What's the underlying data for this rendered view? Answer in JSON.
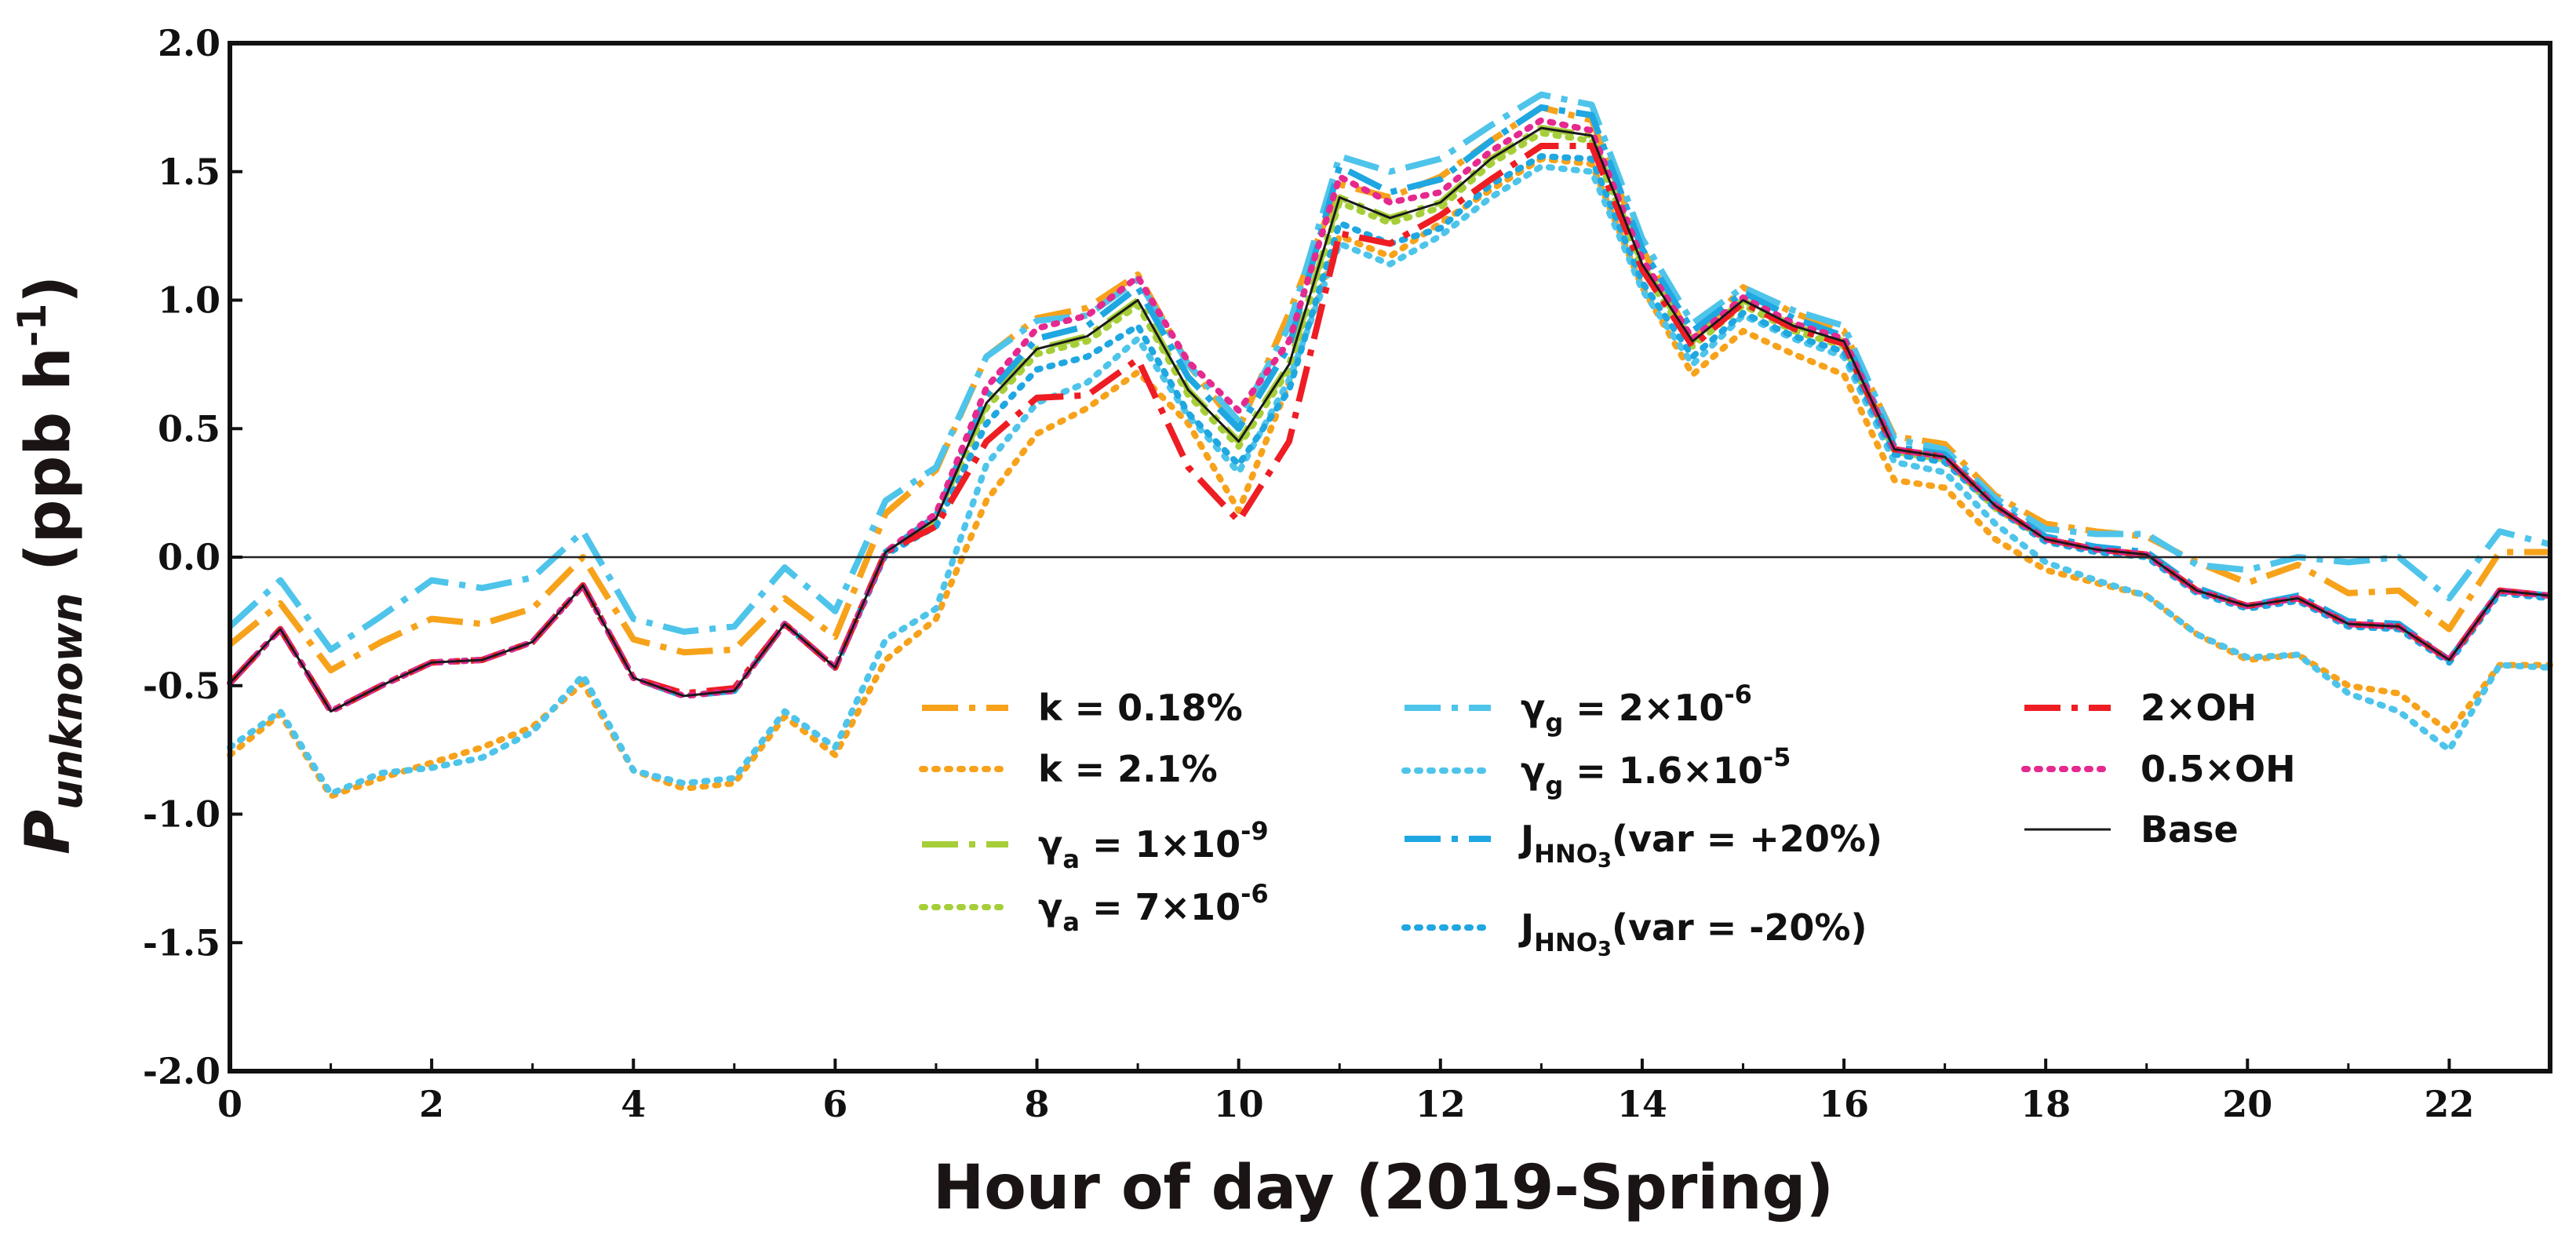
{
  "chart_data": {
    "type": "line",
    "xlabel": "Hour of day (2019-Spring)",
    "ylabel": {
      "main": "P",
      "subscript": "unknown",
      "unit_open": " (ppb h",
      "unit_sup": "-1",
      "unit_close": ")"
    },
    "xlim": [
      0,
      23
    ],
    "ylim": [
      -2.0,
      2.0
    ],
    "xticks": [
      0,
      2,
      4,
      6,
      8,
      10,
      12,
      14,
      16,
      18,
      20,
      22
    ],
    "xtick_labels": [
      "0",
      "2",
      "4",
      "6",
      "8",
      "10",
      "12",
      "14",
      "16",
      "18",
      "20",
      "22"
    ],
    "yticks": [
      -2.0,
      -1.5,
      -1.0,
      -0.5,
      0.0,
      0.5,
      1.0,
      1.5,
      2.0
    ],
    "ytick_labels": [
      "-2.0",
      "-1.5",
      "-1.0",
      "-0.5",
      "0.0",
      "0.5",
      "1.0",
      "1.5",
      "2.0"
    ],
    "zero_line": true,
    "x": [
      0,
      0.5,
      1,
      1.5,
      2,
      2.5,
      3,
      3.5,
      4,
      4.5,
      5,
      5.5,
      6,
      6.5,
      7,
      7.5,
      8,
      8.5,
      9,
      9.5,
      10,
      10.5,
      11,
      11.5,
      12,
      12.5,
      13,
      13.5,
      14,
      14.5,
      15,
      15.5,
      16,
      16.5,
      17,
      17.5,
      18,
      18.5,
      19,
      19.5,
      20,
      20.5,
      21,
      21.5,
      22,
      22.5,
      23
    ],
    "series": [
      {
        "name": "k = 0.18%",
        "color": "#F7A21B",
        "style": "dashdot",
        "values": [
          -0.34,
          -0.18,
          -0.44,
          -0.33,
          -0.24,
          -0.26,
          -0.2,
          0.0,
          -0.32,
          -0.37,
          -0.36,
          -0.16,
          -0.31,
          0.17,
          0.34,
          0.78,
          0.93,
          0.97,
          1.1,
          0.75,
          0.5,
          0.95,
          1.45,
          1.4,
          1.48,
          1.62,
          1.75,
          1.7,
          1.2,
          0.84,
          1.05,
          0.95,
          0.88,
          0.47,
          0.44,
          0.24,
          0.13,
          0.1,
          0.08,
          -0.02,
          -0.1,
          -0.03,
          -0.14,
          -0.13,
          -0.28,
          0.02,
          0.02
        ]
      },
      {
        "name": "k = 2.1%",
        "color": "#F7A21B",
        "style": "dotted",
        "values": [
          -0.77,
          -0.61,
          -0.93,
          -0.86,
          -0.8,
          -0.74,
          -0.66,
          -0.49,
          -0.83,
          -0.9,
          -0.88,
          -0.62,
          -0.77,
          -0.4,
          -0.24,
          0.22,
          0.48,
          0.58,
          0.72,
          0.52,
          0.18,
          0.68,
          1.25,
          1.17,
          1.3,
          1.43,
          1.55,
          1.53,
          1.05,
          0.71,
          0.88,
          0.79,
          0.71,
          0.3,
          0.27,
          0.07,
          -0.05,
          -0.1,
          -0.15,
          -0.3,
          -0.4,
          -0.38,
          -0.5,
          -0.53,
          -0.68,
          -0.42,
          -0.42
        ]
      },
      {
        "name": "γa = 1×10-9",
        "color": "#A6CE39",
        "style": "dashdot",
        "values": [
          -0.49,
          -0.28,
          -0.6,
          -0.5,
          -0.41,
          -0.4,
          -0.33,
          -0.11,
          -0.47,
          -0.54,
          -0.52,
          -0.26,
          -0.43,
          0.02,
          0.15,
          0.6,
          0.81,
          0.86,
          1.0,
          0.65,
          0.45,
          0.75,
          1.4,
          1.32,
          1.38,
          1.55,
          1.67,
          1.64,
          1.14,
          0.84,
          1.0,
          0.9,
          0.84,
          0.42,
          0.39,
          0.2,
          0.07,
          0.03,
          0.01,
          -0.13,
          -0.19,
          -0.16,
          -0.26,
          -0.27,
          -0.4,
          -0.13,
          -0.15
        ]
      },
      {
        "name": "γa = 7×10-6",
        "color": "#A6CE39",
        "style": "dotted",
        "values": [
          -0.49,
          -0.28,
          -0.6,
          -0.5,
          -0.41,
          -0.4,
          -0.33,
          -0.11,
          -0.47,
          -0.54,
          -0.52,
          -0.26,
          -0.43,
          0.02,
          0.14,
          0.58,
          0.79,
          0.84,
          0.98,
          0.63,
          0.43,
          0.73,
          1.38,
          1.3,
          1.36,
          1.53,
          1.65,
          1.62,
          1.12,
          0.82,
          0.98,
          0.88,
          0.82,
          0.41,
          0.38,
          0.19,
          0.07,
          0.03,
          0.01,
          -0.13,
          -0.19,
          -0.16,
          -0.26,
          -0.27,
          -0.4,
          -0.13,
          -0.15
        ]
      },
      {
        "name": "γg = 2×10-6",
        "color": "#4EC4EA",
        "style": "dashdot",
        "values": [
          -0.27,
          -0.09,
          -0.36,
          -0.23,
          -0.09,
          -0.12,
          -0.08,
          0.1,
          -0.24,
          -0.29,
          -0.27,
          -0.04,
          -0.21,
          0.22,
          0.35,
          0.78,
          0.92,
          0.94,
          1.08,
          0.75,
          0.53,
          0.9,
          1.56,
          1.5,
          1.55,
          1.68,
          1.8,
          1.76,
          1.24,
          0.91,
          1.05,
          0.96,
          0.9,
          0.46,
          0.42,
          0.23,
          0.11,
          0.09,
          0.09,
          -0.03,
          -0.05,
          0.0,
          -0.02,
          0.0,
          -0.16,
          0.1,
          0.05
        ]
      },
      {
        "name": "γg = 1.6×10-5",
        "color": "#4EC4EA",
        "style": "dotted",
        "values": [
          -0.74,
          -0.6,
          -0.92,
          -0.84,
          -0.82,
          -0.78,
          -0.68,
          -0.46,
          -0.83,
          -0.88,
          -0.86,
          -0.6,
          -0.74,
          -0.32,
          -0.2,
          0.36,
          0.6,
          0.68,
          0.85,
          0.55,
          0.33,
          0.69,
          1.22,
          1.14,
          1.25,
          1.4,
          1.52,
          1.5,
          1.04,
          0.75,
          0.94,
          0.85,
          0.78,
          0.37,
          0.33,
          0.13,
          -0.02,
          -0.09,
          -0.15,
          -0.3,
          -0.39,
          -0.38,
          -0.53,
          -0.6,
          -0.75,
          -0.42,
          -0.43
        ]
      },
      {
        "name": "JHNO3(var = +20%)",
        "color": "#1FA7E1",
        "style": "dashdot",
        "values": [
          -0.49,
          -0.28,
          -0.6,
          -0.5,
          -0.41,
          -0.4,
          -0.33,
          -0.11,
          -0.47,
          -0.54,
          -0.52,
          -0.26,
          -0.43,
          0.02,
          0.16,
          0.63,
          0.85,
          0.9,
          1.05,
          0.7,
          0.5,
          0.82,
          1.52,
          1.42,
          1.47,
          1.62,
          1.75,
          1.72,
          1.2,
          0.88,
          1.03,
          0.93,
          0.86,
          0.43,
          0.4,
          0.21,
          0.08,
          0.04,
          0.02,
          -0.12,
          -0.19,
          -0.15,
          -0.25,
          -0.26,
          -0.4,
          -0.13,
          -0.15
        ]
      },
      {
        "name": "JHNO3(var = -20%)",
        "color": "#1FA7E1",
        "style": "dotted",
        "values": [
          -0.49,
          -0.28,
          -0.6,
          -0.5,
          -0.41,
          -0.4,
          -0.33,
          -0.11,
          -0.47,
          -0.54,
          -0.52,
          -0.26,
          -0.43,
          0.01,
          0.12,
          0.52,
          0.73,
          0.78,
          0.9,
          0.56,
          0.36,
          0.65,
          1.3,
          1.22,
          1.28,
          1.45,
          1.56,
          1.55,
          1.07,
          0.78,
          0.95,
          0.86,
          0.8,
          0.4,
          0.37,
          0.19,
          0.06,
          0.02,
          0.0,
          -0.14,
          -0.2,
          -0.17,
          -0.27,
          -0.28,
          -0.41,
          -0.14,
          -0.16
        ]
      },
      {
        "name": "2×OH",
        "color": "#EE1D24",
        "style": "dashdot",
        "values": [
          -0.49,
          -0.28,
          -0.6,
          -0.5,
          -0.41,
          -0.4,
          -0.33,
          -0.11,
          -0.47,
          -0.53,
          -0.51,
          -0.26,
          -0.43,
          0.02,
          0.12,
          0.45,
          0.62,
          0.63,
          0.77,
          0.35,
          0.14,
          0.45,
          1.26,
          1.22,
          1.33,
          1.47,
          1.6,
          1.6,
          1.12,
          0.82,
          0.99,
          0.89,
          0.83,
          0.42,
          0.39,
          0.2,
          0.07,
          0.03,
          0.01,
          -0.13,
          -0.19,
          -0.16,
          -0.26,
          -0.27,
          -0.4,
          -0.13,
          -0.15
        ]
      },
      {
        "name": "0.5×OH",
        "color": "#E5298F",
        "style": "dotted",
        "values": [
          -0.49,
          -0.28,
          -0.6,
          -0.5,
          -0.41,
          -0.4,
          -0.33,
          -0.11,
          -0.47,
          -0.54,
          -0.52,
          -0.26,
          -0.43,
          0.02,
          0.17,
          0.66,
          0.89,
          0.94,
          1.09,
          0.76,
          0.57,
          0.84,
          1.48,
          1.38,
          1.42,
          1.58,
          1.7,
          1.66,
          1.16,
          0.85,
          1.01,
          0.91,
          0.85,
          0.42,
          0.39,
          0.2,
          0.07,
          0.03,
          0.01,
          -0.13,
          -0.19,
          -0.16,
          -0.26,
          -0.27,
          -0.4,
          -0.13,
          -0.15
        ]
      },
      {
        "name": "Base",
        "color": "#1a1a1a",
        "style": "solid",
        "values": [
          -0.49,
          -0.28,
          -0.6,
          -0.5,
          -0.41,
          -0.4,
          -0.33,
          -0.11,
          -0.47,
          -0.54,
          -0.52,
          -0.26,
          -0.43,
          0.02,
          0.15,
          0.6,
          0.81,
          0.86,
          1.0,
          0.65,
          0.45,
          0.75,
          1.4,
          1.32,
          1.38,
          1.55,
          1.67,
          1.64,
          1.14,
          0.84,
          1.0,
          0.9,
          0.84,
          0.42,
          0.39,
          0.2,
          0.07,
          0.03,
          0.01,
          -0.13,
          -0.19,
          -0.16,
          -0.26,
          -0.27,
          -0.4,
          -0.13,
          -0.15
        ]
      }
    ],
    "legend": {
      "placement": "lower-center",
      "entries": [
        {
          "series": 0,
          "main": "k = 0.18%"
        },
        {
          "series": 1,
          "main": "k = 2.1%"
        },
        {
          "series": 2,
          "main": "γ",
          "sub": "a",
          "rest": " = 1×10",
          "sup": "-9"
        },
        {
          "series": 3,
          "main": "γ",
          "sub": "a",
          "rest": " = 7×10",
          "sup": "-6"
        },
        {
          "series": 4,
          "main": "γ",
          "sub": "g",
          "rest": " = 2×10",
          "sup": "-6"
        },
        {
          "series": 5,
          "main": "γ",
          "sub": "g",
          "rest": " = 1.6×10",
          "sup": "-5"
        },
        {
          "series": 6,
          "main": "J",
          "sub": "HNO",
          "sub2": "3",
          "rest": "(var = +20%)"
        },
        {
          "series": 7,
          "main": "J",
          "sub": "HNO",
          "sub2": "3",
          "rest": "(var = -20%)"
        },
        {
          "series": 8,
          "main": "2×OH"
        },
        {
          "series": 9,
          "main": "0.5×OH"
        },
        {
          "series": 10,
          "main": "Base"
        }
      ]
    }
  }
}
